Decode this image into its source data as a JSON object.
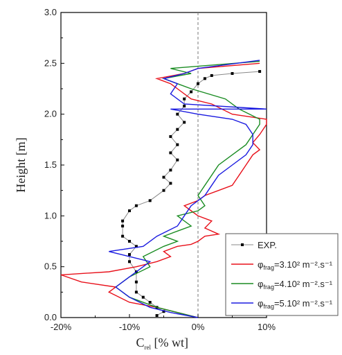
{
  "chart_data": {
    "type": "line",
    "xlabel": "C",
    "xlabel_sub": "rel",
    "xlabel_unit": " [% wt]",
    "ylabel": "Height [m]",
    "xlim": [
      -20,
      10
    ],
    "ylim": [
      0,
      3.0
    ],
    "x_ticks": [
      "-20%",
      "-10%",
      "0%",
      "10%"
    ],
    "x_tick_values": [
      -20,
      -10,
      0,
      10
    ],
    "y_ticks": [
      "0.0",
      "0.5",
      "1.0",
      "1.5",
      "2.0",
      "2.5",
      "3.0"
    ],
    "y_tick_values": [
      0,
      0.5,
      1.0,
      1.5,
      2.0,
      2.5,
      3.0
    ],
    "reference_line_x": 0,
    "legend_position": "bottom-right",
    "series": [
      {
        "name": "EXP.",
        "color": "#000000",
        "points": [
          [
            -6,
            0.02
          ],
          [
            -5,
            0.06
          ],
          [
            -6,
            0.1
          ],
          [
            -7,
            0.15
          ],
          [
            -8,
            0.2
          ],
          [
            -9,
            0.25
          ],
          [
            -9,
            0.35
          ],
          [
            -9,
            0.45
          ],
          [
            -10,
            0.55
          ],
          [
            -10,
            0.62
          ],
          [
            -9,
            0.7
          ],
          [
            -10,
            0.75
          ],
          [
            -11,
            0.8
          ],
          [
            -11,
            0.9
          ],
          [
            -11,
            0.95
          ],
          [
            -10,
            1.05
          ],
          [
            -9,
            1.1
          ],
          [
            -7,
            1.15
          ],
          [
            -5,
            1.25
          ],
          [
            -4,
            1.32
          ],
          [
            -5,
            1.38
          ],
          [
            -4,
            1.45
          ],
          [
            -3,
            1.55
          ],
          [
            -4,
            1.62
          ],
          [
            -3,
            1.7
          ],
          [
            -4,
            1.78
          ],
          [
            -3,
            1.85
          ],
          [
            -2,
            1.92
          ],
          [
            -3,
            2.0
          ],
          [
            -2,
            2.08
          ],
          [
            -2,
            2.15
          ],
          [
            -1,
            2.22
          ],
          [
            0,
            2.3
          ],
          [
            1,
            2.35
          ],
          [
            2,
            2.38
          ],
          [
            5,
            2.4
          ],
          [
            9,
            2.42
          ]
        ]
      },
      {
        "name": "φfrag=3.10² m⁻².s⁻¹",
        "label_main": "φ",
        "label_sub": "frag",
        "label_rest": "=3.10² m⁻².s⁻¹",
        "color": "#e8101a",
        "points": [
          [
            0,
            0.0
          ],
          [
            -3,
            0.05
          ],
          [
            -6,
            0.1
          ],
          [
            -10,
            0.15
          ],
          [
            -13,
            0.25
          ],
          [
            -12,
            0.3
          ],
          [
            -17,
            0.35
          ],
          [
            -20,
            0.42
          ],
          [
            -13,
            0.45
          ],
          [
            -9,
            0.5
          ],
          [
            -6,
            0.55
          ],
          [
            -4,
            0.6
          ],
          [
            -5,
            0.65
          ],
          [
            -3,
            0.7
          ],
          [
            -1,
            0.72
          ],
          [
            0,
            0.75
          ],
          [
            1,
            0.8
          ],
          [
            3,
            0.82
          ],
          [
            1,
            0.88
          ],
          [
            2,
            0.95
          ],
          [
            0,
            1.0
          ],
          [
            -1,
            1.05
          ],
          [
            -2,
            1.1
          ],
          [
            0,
            1.15
          ],
          [
            1,
            1.2
          ],
          [
            3,
            1.25
          ],
          [
            5,
            1.3
          ],
          [
            6,
            1.4
          ],
          [
            7,
            1.5
          ],
          [
            8,
            1.6
          ],
          [
            9,
            1.65
          ],
          [
            8,
            1.72
          ],
          [
            9,
            1.8
          ],
          [
            10,
            1.9
          ],
          [
            10,
            1.95
          ],
          [
            5,
            2.0
          ],
          [
            2,
            2.1
          ],
          [
            -1,
            2.15
          ],
          [
            -3,
            2.25
          ],
          [
            -4,
            2.3
          ],
          [
            -6,
            2.35
          ],
          [
            -2,
            2.4
          ],
          [
            0,
            2.45
          ],
          [
            9,
            2.5
          ]
        ]
      },
      {
        "name": "φfrag=4.10² m⁻².s⁻¹",
        "label_main": "φ",
        "label_sub": "frag",
        "label_rest": "=4.10² m⁻².s⁻¹",
        "color": "#1a8c22",
        "points": [
          [
            0,
            0.0
          ],
          [
            -3,
            0.05
          ],
          [
            -6,
            0.1
          ],
          [
            -10,
            0.2
          ],
          [
            -12,
            0.3
          ],
          [
            -10,
            0.4
          ],
          [
            -7,
            0.5
          ],
          [
            -8,
            0.6
          ],
          [
            -5,
            0.7
          ],
          [
            -3,
            0.75
          ],
          [
            -5,
            0.8
          ],
          [
            -3,
            0.85
          ],
          [
            -1,
            0.9
          ],
          [
            -3,
            1.0
          ],
          [
            0,
            1.05
          ],
          [
            1,
            1.1
          ],
          [
            0,
            1.2
          ],
          [
            1,
            1.3
          ],
          [
            2,
            1.4
          ],
          [
            3,
            1.5
          ],
          [
            5,
            1.6
          ],
          [
            7,
            1.7
          ],
          [
            8,
            1.8
          ],
          [
            9,
            1.9
          ],
          [
            9,
            1.95
          ],
          [
            6,
            2.05
          ],
          [
            4,
            2.15
          ],
          [
            -1,
            2.25
          ],
          [
            -3,
            2.3
          ],
          [
            -5,
            2.35
          ],
          [
            -1,
            2.4
          ],
          [
            -4,
            2.45
          ],
          [
            9,
            2.52
          ]
        ]
      },
      {
        "name": "φfrag=5.10² m⁻².s⁻¹",
        "label_main": "φ",
        "label_sub": "frag",
        "label_rest": "=5.10² m⁻².s⁻¹",
        "color": "#1a1ae0",
        "points": [
          [
            0,
            0.0
          ],
          [
            -4,
            0.05
          ],
          [
            -7,
            0.1
          ],
          [
            -10,
            0.2
          ],
          [
            -12,
            0.3
          ],
          [
            -10,
            0.4
          ],
          [
            -8,
            0.5
          ],
          [
            -7,
            0.55
          ],
          [
            -13,
            0.65
          ],
          [
            -8,
            0.7
          ],
          [
            -6,
            0.8
          ],
          [
            -3,
            0.9
          ],
          [
            -2,
            1.0
          ],
          [
            -1,
            1.1
          ],
          [
            1,
            1.2
          ],
          [
            2,
            1.3
          ],
          [
            3,
            1.4
          ],
          [
            5,
            1.5
          ],
          [
            7,
            1.6
          ],
          [
            8,
            1.7
          ],
          [
            8,
            1.8
          ],
          [
            7,
            1.9
          ],
          [
            5,
            1.95
          ],
          [
            0,
            2.0
          ],
          [
            -4,
            2.05
          ],
          [
            10,
            2.05
          ],
          [
            -2,
            2.1
          ],
          [
            -4,
            2.2
          ],
          [
            -3,
            2.3
          ],
          [
            -5,
            2.35
          ],
          [
            -2,
            2.4
          ],
          [
            0,
            2.45
          ],
          [
            9,
            2.53
          ]
        ]
      }
    ]
  }
}
